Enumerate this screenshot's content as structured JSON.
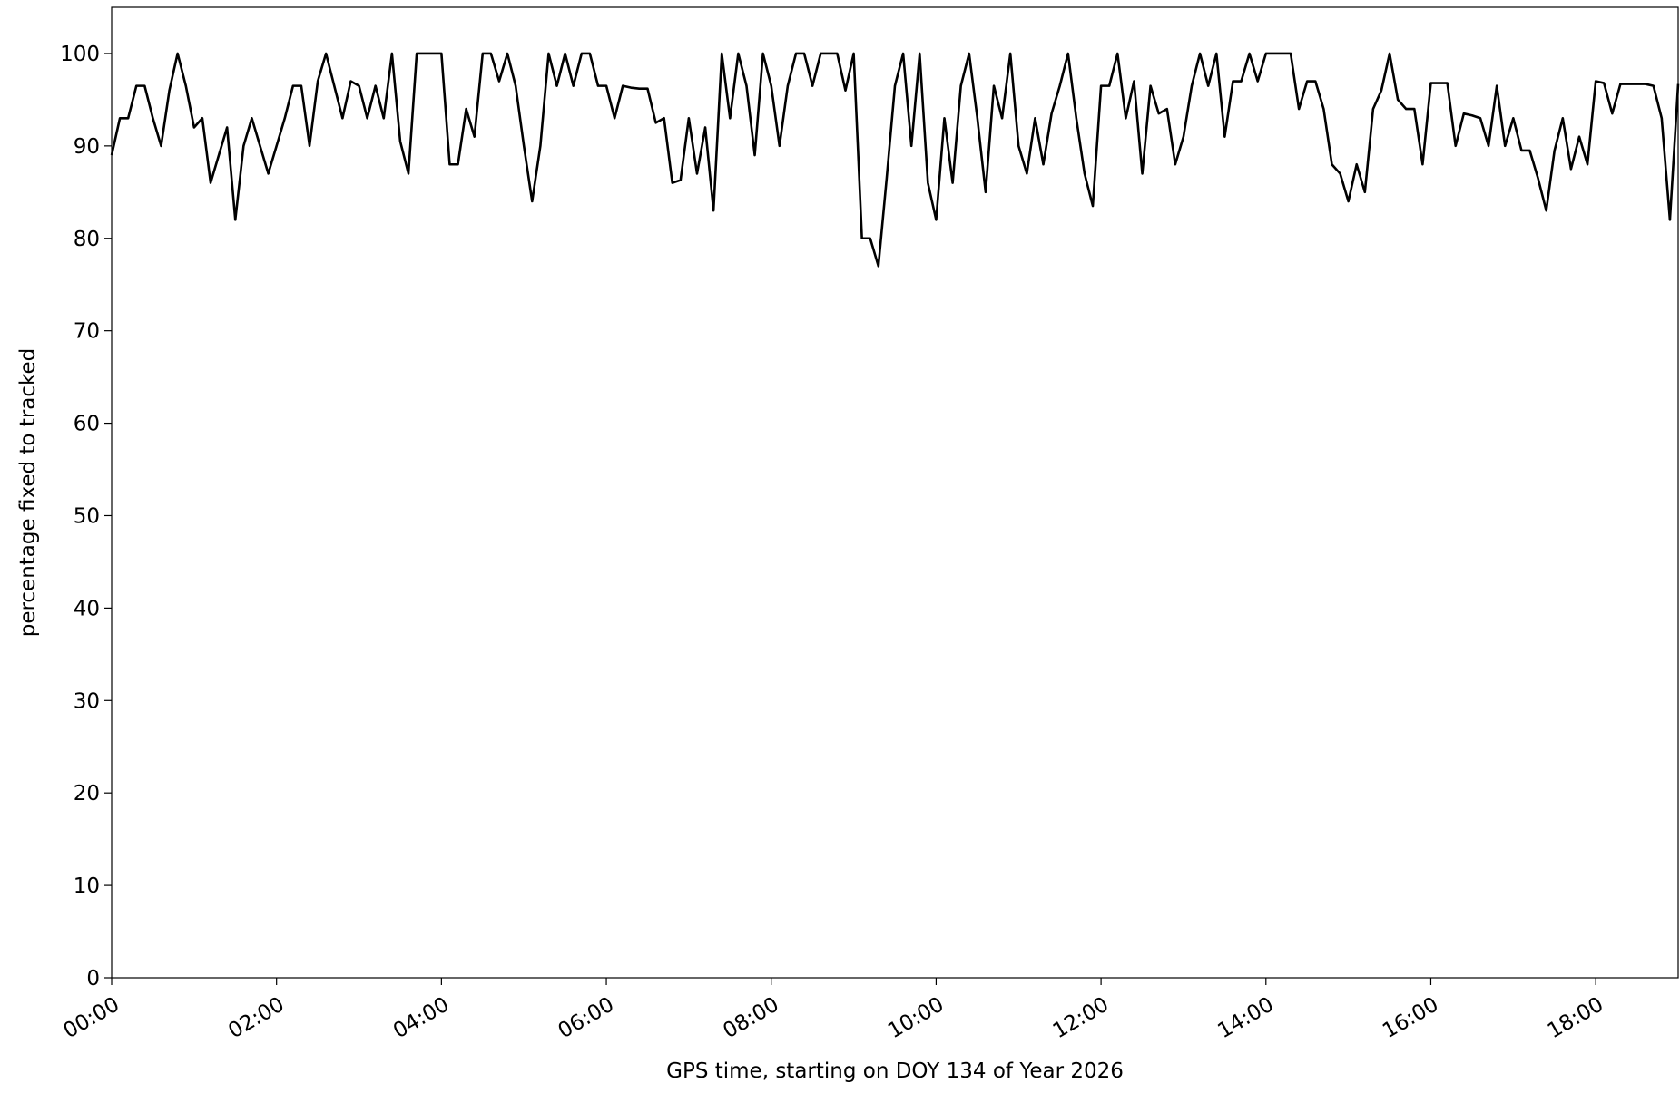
{
  "chart_data": {
    "type": "line",
    "xlabel": "GPS time, starting on DOY 134 of Year 2026",
    "ylabel": "percentage fixed to tracked",
    "xlim": [
      0,
      19
    ],
    "ylim": [
      0,
      105
    ],
    "xticks": [
      {
        "value": 0,
        "label": "00:00"
      },
      {
        "value": 2,
        "label": "02:00"
      },
      {
        "value": 4,
        "label": "04:00"
      },
      {
        "value": 6,
        "label": "06:00"
      },
      {
        "value": 8,
        "label": "08:00"
      },
      {
        "value": 10,
        "label": "10:00"
      },
      {
        "value": 12,
        "label": "12:00"
      },
      {
        "value": 14,
        "label": "14:00"
      },
      {
        "value": 16,
        "label": "16:00"
      },
      {
        "value": 18,
        "label": "18:00"
      }
    ],
    "yticks": [
      0,
      10,
      20,
      30,
      40,
      50,
      60,
      70,
      80,
      90,
      100
    ],
    "x": [
      0,
      0.1,
      0.2,
      0.3,
      0.4,
      0.5,
      0.6,
      0.7,
      0.8,
      0.9,
      1,
      1.1,
      1.2,
      1.3,
      1.4,
      1.5,
      1.6,
      1.7,
      1.8,
      1.9,
      2,
      2.1,
      2.2,
      2.3,
      2.4,
      2.5,
      2.6,
      2.7,
      2.8,
      2.9,
      3,
      3.1,
      3.2,
      3.3,
      3.4,
      3.5,
      3.6,
      3.7,
      3.8,
      3.9,
      4,
      4.1,
      4.2,
      4.3,
      4.4,
      4.5,
      4.6,
      4.7,
      4.8,
      4.9,
      5,
      5.1,
      5.2,
      5.3,
      5.4,
      5.5,
      5.6,
      5.7,
      5.8,
      5.9,
      6,
      6.1,
      6.2,
      6.3,
      6.4,
      6.5,
      6.6,
      6.7,
      6.8,
      6.9,
      7,
      7.1,
      7.2,
      7.3,
      7.4,
      7.5,
      7.6,
      7.7,
      7.8,
      7.9,
      8,
      8.1,
      8.2,
      8.3,
      8.4,
      8.5,
      8.6,
      8.7,
      8.8,
      8.9,
      9,
      9.1,
      9.2,
      9.3,
      9.4,
      9.5,
      9.6,
      9.7,
      9.8,
      9.9,
      10,
      10.1,
      10.2,
      10.3,
      10.4,
      10.5,
      10.6,
      10.7,
      10.8,
      10.9,
      11,
      11.1,
      11.2,
      11.3,
      11.4,
      11.5,
      11.6,
      11.7,
      11.8,
      11.9,
      12,
      12.1,
      12.2,
      12.3,
      12.4,
      12.5,
      12.6,
      12.7,
      12.8,
      12.9,
      13,
      13.1,
      13.2,
      13.3,
      13.4,
      13.5,
      13.6,
      13.7,
      13.8,
      13.9,
      14,
      14.1,
      14.2,
      14.3,
      14.4,
      14.5,
      14.6,
      14.7,
      14.8,
      14.9,
      15,
      15.1,
      15.2,
      15.3,
      15.4,
      15.5,
      15.6,
      15.7,
      15.8,
      15.9,
      16,
      16.1,
      16.2,
      16.3,
      16.4,
      16.5,
      16.6,
      16.7,
      16.8,
      16.9,
      17,
      17.1,
      17.2,
      17.3,
      17.4,
      17.5,
      17.6,
      17.7,
      17.8,
      17.9,
      18,
      18.1,
      18.2,
      18.3,
      18.4,
      18.5,
      18.6,
      18.7,
      18.8,
      18.9,
      19
    ],
    "series": [
      {
        "color": "#000000",
        "values": [
          89,
          93,
          93,
          96.5,
          96.5,
          93,
          90,
          96,
          100,
          96.5,
          92,
          93,
          86,
          89,
          92,
          82,
          90,
          93,
          90,
          87,
          90,
          93,
          96.5,
          96.5,
          90,
          97,
          100,
          96.5,
          93,
          97,
          96.5,
          93,
          96.5,
          93,
          100,
          90.5,
          87,
          100,
          100,
          100,
          100,
          88,
          88,
          94,
          91,
          100,
          100,
          97,
          100,
          96.5,
          90,
          84,
          90,
          100,
          96.5,
          100,
          96.5,
          100,
          100,
          96.5,
          96.5,
          93,
          96.5,
          96.3,
          96.2,
          96.2,
          92.5,
          93,
          86,
          86.3,
          93,
          87,
          92,
          83,
          100,
          93,
          100,
          96.5,
          89,
          100,
          96.5,
          90,
          96.5,
          100,
          100,
          96.5,
          100,
          100,
          100,
          96,
          100,
          80,
          80,
          77,
          86.5,
          96.5,
          100,
          90,
          100,
          86,
          82,
          93,
          86,
          96.5,
          100,
          93,
          85,
          96.5,
          93,
          100,
          90,
          87,
          93,
          88,
          93.5,
          96.5,
          100,
          93,
          87,
          83.5,
          96.5,
          96.5,
          100,
          93,
          97,
          87,
          96.5,
          93.5,
          94,
          88,
          91,
          96.5,
          100,
          96.5,
          100,
          91,
          97,
          97,
          100,
          97,
          100,
          100,
          100,
          100,
          94,
          97,
          97,
          94,
          88,
          87,
          84,
          88,
          85,
          94,
          96,
          100,
          95,
          94,
          94,
          88,
          96.8,
          96.8,
          96.8,
          90,
          93.5,
          93.3,
          93,
          90,
          96.5,
          90,
          93,
          89.5,
          89.5,
          86.5,
          83,
          89.5,
          93,
          87.5,
          91,
          88,
          97,
          96.8,
          93.5,
          96.7,
          96.7,
          96.7,
          96.7,
          96.5,
          93,
          82,
          96.7
        ]
      }
    ]
  }
}
